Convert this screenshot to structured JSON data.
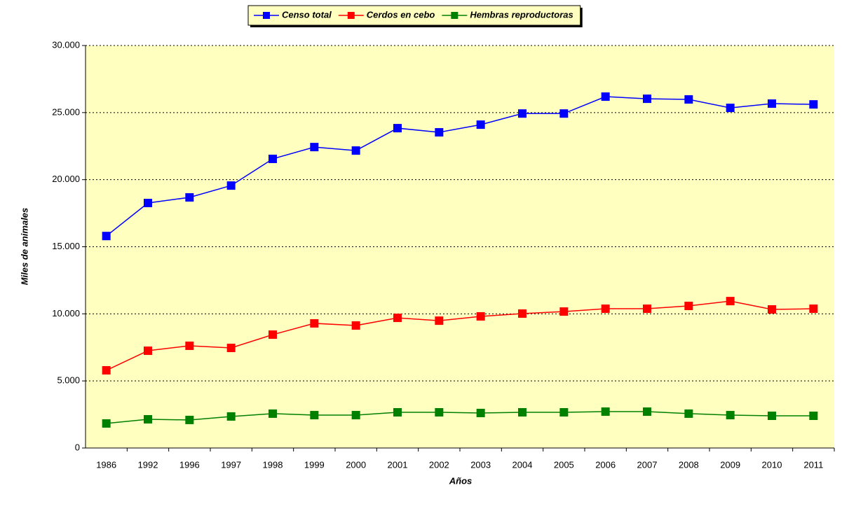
{
  "chart_data": {
    "type": "line",
    "categories": [
      "1986",
      "1992",
      "1996",
      "1997",
      "1998",
      "1999",
      "2000",
      "2001",
      "2002",
      "2003",
      "2004",
      "2005",
      "2006",
      "2007",
      "2008",
      "2009",
      "2010",
      "2011"
    ],
    "series": [
      {
        "name": "Censo total",
        "color": "#0000ff",
        "values": [
          15800,
          18260,
          18680,
          19560,
          21550,
          22430,
          22170,
          23840,
          23530,
          24100,
          24930,
          24930,
          26190,
          26030,
          25980,
          25350,
          25670,
          25610
        ]
      },
      {
        "name": "Cerdos en cebo",
        "color": "#ff0000",
        "values": [
          5790,
          7250,
          7620,
          7460,
          8450,
          9290,
          9130,
          9700,
          9490,
          9810,
          10020,
          10170,
          10380,
          10380,
          10590,
          10950,
          10330,
          10380
        ]
      },
      {
        "name": "Hembras reproductoras",
        "color": "#008000",
        "values": [
          1830,
          2140,
          2090,
          2350,
          2560,
          2450,
          2450,
          2660,
          2660,
          2610,
          2660,
          2660,
          2710,
          2710,
          2560,
          2450,
          2400,
          2400
        ]
      }
    ],
    "ylim": [
      0,
      30000
    ],
    "yticks": [
      0,
      {
        "value": 5000,
        "label": "5.000"
      },
      {
        "value": 10000,
        "label": "10.000"
      },
      {
        "value": 15000,
        "label": "15.000"
      },
      {
        "value": 20000,
        "label": "20.000"
      },
      {
        "value": 25000,
        "label": "25.000"
      },
      {
        "value": 30000,
        "label": "30.000"
      }
    ],
    "xlabel": "Años",
    "ylabel": "Miles de animales",
    "grid": true,
    "legend": "top",
    "background": "#ffffc0"
  }
}
